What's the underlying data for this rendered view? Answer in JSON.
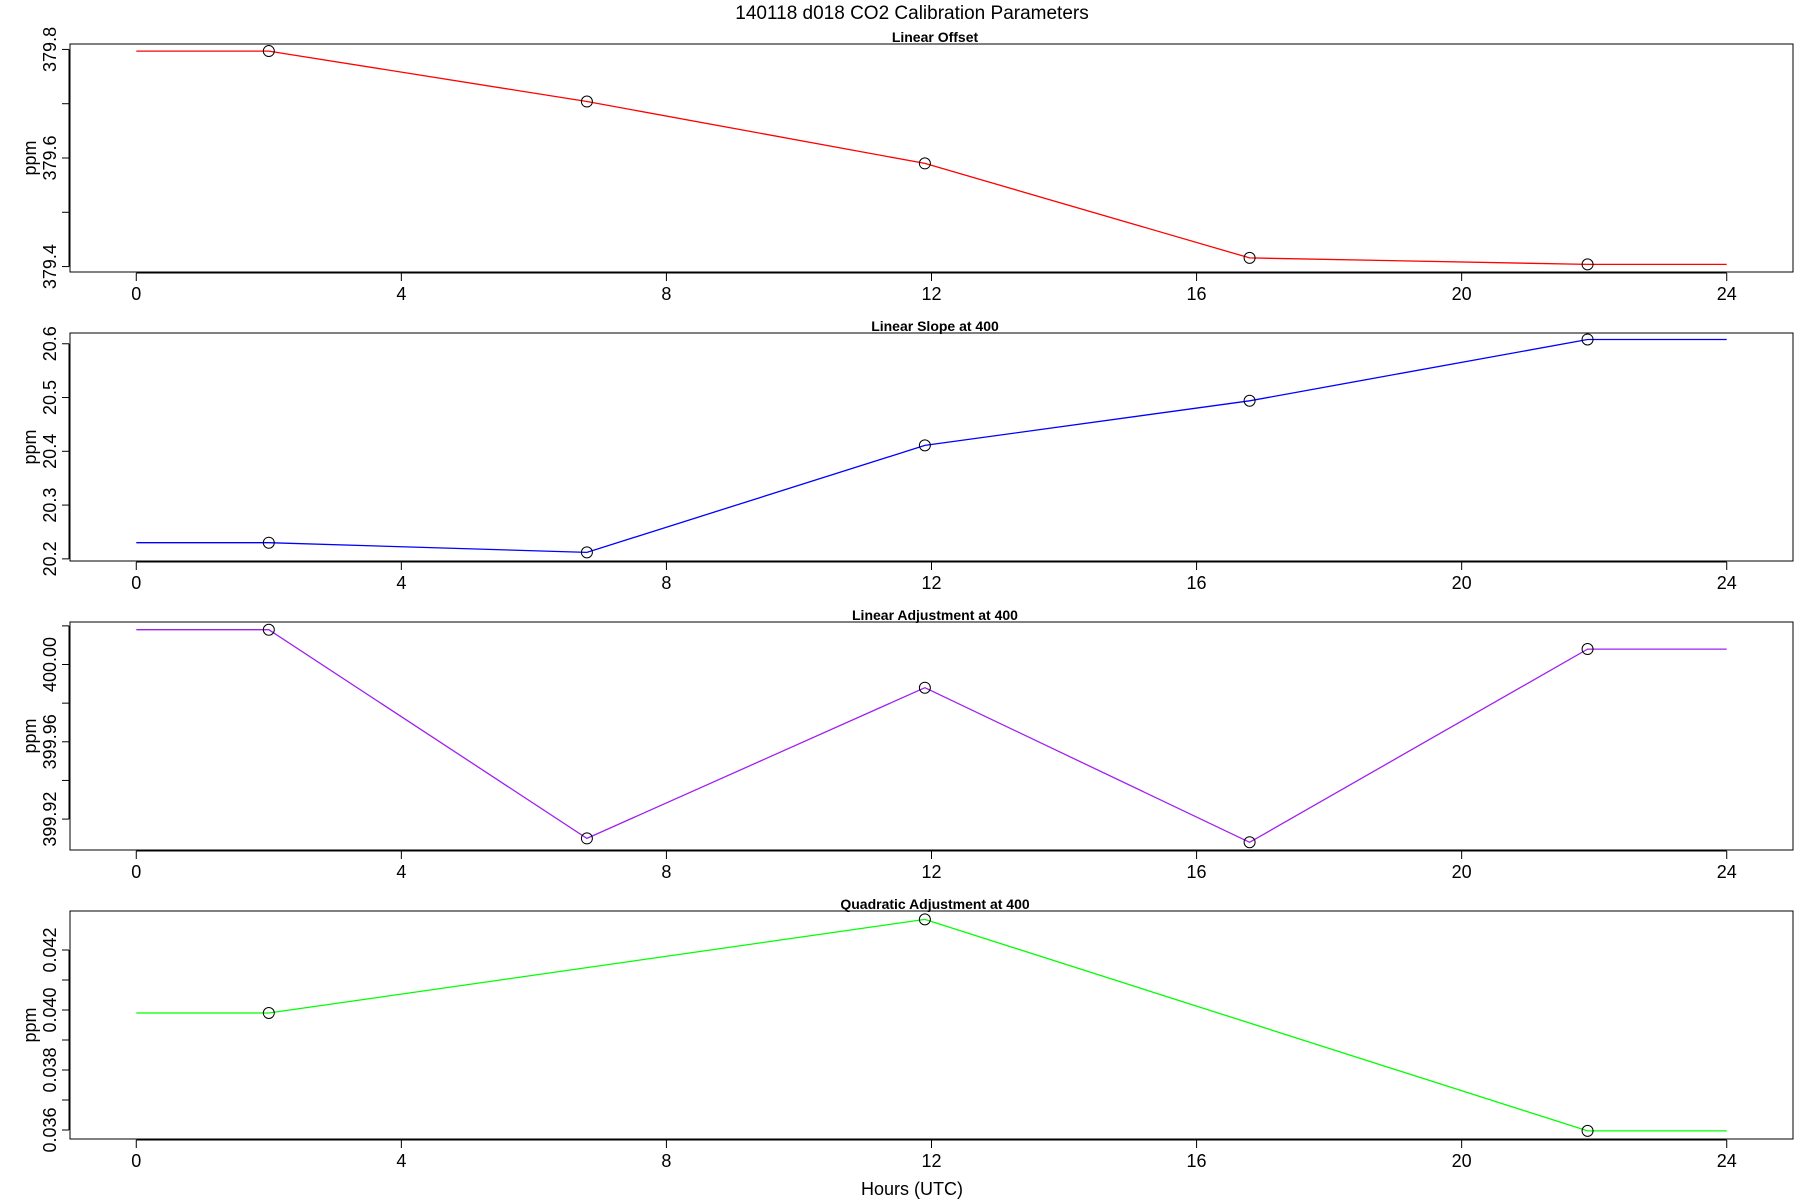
{
  "figure": {
    "title": "140118   d018   CO2 Calibration Parameters",
    "xlabel": "Hours (UTC)"
  },
  "chart_data": [
    {
      "type": "line",
      "title": "Linear Offset",
      "ylabel": "ppm",
      "color": "#ff0000",
      "x": [
        0,
        2,
        6.8,
        11.9,
        16.8,
        21.9,
        24
      ],
      "y": [
        379.797,
        379.797,
        379.704,
        379.59,
        379.416,
        379.404,
        379.404
      ],
      "markers_x": [
        2,
        6.8,
        11.9,
        16.8,
        21.9
      ],
      "markers_y": [
        379.797,
        379.704,
        379.59,
        379.416,
        379.404
      ],
      "xlim": [
        -1,
        25
      ],
      "ylim": [
        379.39,
        379.81
      ],
      "xticks": [
        0,
        4,
        8,
        12,
        16,
        20,
        24
      ],
      "yticks": [
        379.4,
        379.5,
        379.6,
        379.7,
        379.8
      ],
      "ytick_labels": [
        "379.4",
        "",
        "379.6",
        "",
        "379.8"
      ]
    },
    {
      "type": "line",
      "title": "Linear Slope at 400",
      "ylabel": "ppm",
      "color": "#0000ff",
      "x": [
        0,
        2,
        6.8,
        11.9,
        16.8,
        21.9,
        24
      ],
      "y": [
        20.23,
        20.23,
        20.212,
        20.411,
        20.494,
        20.608,
        20.608
      ],
      "markers_x": [
        2,
        6.8,
        11.9,
        16.8,
        21.9
      ],
      "markers_y": [
        20.23,
        20.212,
        20.411,
        20.494,
        20.608
      ],
      "xlim": [
        -1,
        25
      ],
      "ylim": [
        20.196,
        20.62
      ],
      "xticks": [
        0,
        4,
        8,
        12,
        16,
        20,
        24
      ],
      "yticks": [
        20.2,
        20.3,
        20.4,
        20.5,
        20.6
      ],
      "ytick_labels": [
        "20.2",
        "20.3",
        "20.4",
        "20.5",
        "20.6"
      ]
    },
    {
      "type": "line",
      "title": "Linear Adjustment at 400",
      "ylabel": "ppm",
      "color": "#a020f0",
      "x": [
        0,
        2,
        6.8,
        11.9,
        16.8,
        21.9,
        24
      ],
      "y": [
        400.018,
        400.018,
        399.91,
        399.988,
        399.908,
        400.008,
        400.008
      ],
      "markers_x": [
        2,
        6.8,
        11.9,
        16.8,
        21.9
      ],
      "markers_y": [
        400.018,
        399.91,
        399.988,
        399.908,
        400.008
      ],
      "xlim": [
        -1,
        25
      ],
      "ylim": [
        399.904,
        400.022
      ],
      "xticks": [
        0,
        4,
        8,
        12,
        16,
        20,
        24
      ],
      "yticks": [
        399.92,
        399.94,
        399.96,
        399.98,
        400.0,
        400.02
      ],
      "ytick_labels": [
        "399.92",
        "",
        "399.96",
        "",
        "400.00",
        ""
      ]
    },
    {
      "type": "line",
      "title": "Quadratic Adjustment at 400",
      "ylabel": "ppm",
      "color": "#00ff00",
      "x": [
        0,
        2,
        11.9,
        21.9,
        24
      ],
      "y": [
        0.0399,
        0.0399,
        0.04302,
        0.03597,
        0.03597
      ],
      "markers_x": [
        2,
        11.9,
        21.9
      ],
      "markers_y": [
        0.0399,
        0.04302,
        0.03597
      ],
      "xlim": [
        -1,
        25
      ],
      "ylim": [
        0.0357,
        0.0433
      ],
      "xticks": [
        0,
        4,
        8,
        12,
        16,
        20,
        24
      ],
      "yticks": [
        0.036,
        0.037,
        0.038,
        0.039,
        0.04,
        0.041,
        0.042
      ],
      "ytick_labels": [
        "0.036",
        "",
        "0.038",
        "",
        "0.040",
        "",
        "0.042"
      ]
    }
  ]
}
